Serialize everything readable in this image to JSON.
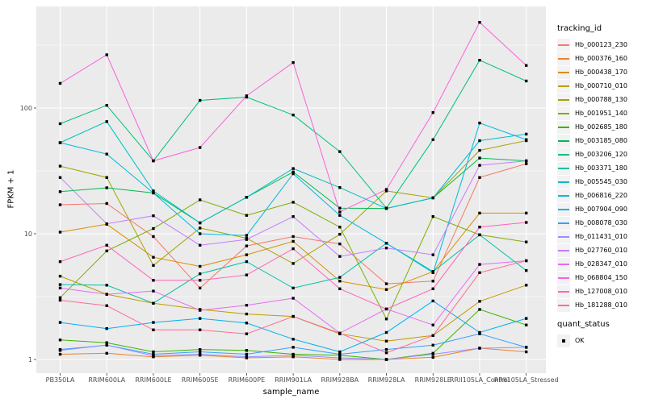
{
  "figure": {
    "legend": {
      "tracking_title": "tracking_id",
      "quant_title": "quant_status",
      "quant_items": [
        {
          "label": "OK"
        }
      ]
    },
    "colors": {
      "panel": "#EBEBEB",
      "grid_major": "#FFFFFF",
      "grid_minor": "#FFFFFF",
      "axis_text": "#4D4D4D",
      "tick_mark": "#333333",
      "key_bg": "#F2F2F2",
      "point": "#000000"
    }
  },
  "chart_data": {
    "type": "line",
    "title": "",
    "xlabel": "sample_name",
    "ylabel": "FPKM + 1",
    "y_scale": "log10",
    "ylim": [
      0.85,
      640
    ],
    "y_ticks": [
      1,
      10,
      100
    ],
    "y_tick_labels": [
      "1",
      "10",
      "100"
    ],
    "grid": true,
    "legend_position": "right",
    "point_marker": "black-square",
    "categories": [
      "PB350LA",
      "RRIM600LA",
      "RRIM600LE",
      "RRIM600SE",
      "RRIM600PE",
      "RRIM901LA",
      "RRIM928BA",
      "RRIM928LA",
      "RRIM928LE",
      "RRII105LA_Control",
      "RRII105LA_Stressed"
    ],
    "series": [
      {
        "name": "Hb_000123_230",
        "color": "#F8766D",
        "values": [
          17,
          17.4,
          9.5,
          3.7,
          8.0,
          9.5,
          8.3,
          4.0,
          4.2,
          28,
          36
        ]
      },
      {
        "name": "Hb_000376_160",
        "color": "#EA8331",
        "values": [
          1.1,
          1.12,
          1.05,
          1.08,
          1.03,
          1.05,
          1.0,
          1.0,
          1.04,
          1.23,
          1.15
        ]
      },
      {
        "name": "Hb_000438_170",
        "color": "#D89000",
        "values": [
          10.3,
          11.9,
          6.5,
          5.5,
          6.8,
          8.7,
          4.2,
          3.6,
          5.0,
          14.6,
          14.6
        ]
      },
      {
        "name": "Hb_000710_010",
        "color": "#C09B00",
        "values": [
          4.6,
          3.3,
          2.8,
          2.5,
          2.3,
          2.2,
          1.6,
          1.4,
          1.55,
          2.9,
          3.9
        ]
      },
      {
        "name": "Hb_000788_130",
        "color": "#A3A500",
        "values": [
          34.5,
          28,
          5.6,
          11.1,
          9.2,
          5.8,
          9.9,
          21.9,
          19.3,
          46,
          55
        ]
      },
      {
        "name": "Hb_001951_140",
        "color": "#7CAE00",
        "values": [
          3.1,
          7.3,
          11.0,
          18.6,
          14.0,
          17.8,
          11.3,
          2.1,
          13.7,
          9.8,
          8.6
        ]
      },
      {
        "name": "Hb_002685_180",
        "color": "#39B600",
        "values": [
          1.43,
          1.36,
          1.15,
          1.2,
          1.18,
          1.1,
          1.08,
          1.0,
          1.12,
          2.5,
          1.88
        ]
      },
      {
        "name": "Hb_003185_080",
        "color": "#00BB4E",
        "values": [
          21.6,
          23.2,
          21.1,
          12.2,
          19.5,
          31,
          16,
          15.9,
          19.3,
          40,
          38
        ]
      },
      {
        "name": "Hb_003206_120",
        "color": "#00BF7D",
        "values": [
          75,
          105,
          38,
          115,
          122,
          88,
          45,
          16,
          56,
          240,
          164
        ]
      },
      {
        "name": "Hb_003371_180",
        "color": "#00C1A3",
        "values": [
          3.94,
          3.9,
          2.8,
          4.8,
          6.0,
          3.7,
          4.5,
          8.4,
          5.0,
          9.8,
          5.1
        ]
      },
      {
        "name": "Hb_005545_030",
        "color": "#00BFC4",
        "values": [
          53,
          78,
          21.9,
          12.2,
          19.5,
          33,
          23.3,
          15.9,
          19.3,
          55,
          62
        ]
      },
      {
        "name": "Hb_006816_220",
        "color": "#00BAE0",
        "values": [
          53,
          43,
          21.1,
          10.0,
          9.7,
          30,
          14,
          8.4,
          4.9,
          76,
          56
        ]
      },
      {
        "name": "Hb_007904_090",
        "color": "#00B0F6",
        "values": [
          1.97,
          1.76,
          1.97,
          2.12,
          1.95,
          1.45,
          1.15,
          1.64,
          2.92,
          1.64,
          2.12
        ]
      },
      {
        "name": "Hb_008078_030",
        "color": "#35A2FF",
        "values": [
          1.2,
          1.3,
          1.1,
          1.15,
          1.1,
          1.25,
          1.1,
          1.2,
          1.3,
          1.6,
          1.25
        ]
      },
      {
        "name": "Hb_011431_010",
        "color": "#9590FF",
        "values": [
          1.18,
          1.3,
          1.07,
          1.1,
          1.05,
          1.08,
          1.03,
          1.0,
          1.1,
          1.23,
          1.25
        ]
      },
      {
        "name": "Hb_027760_010",
        "color": "#C77CFF",
        "values": [
          28,
          12.0,
          13.9,
          8.1,
          9.0,
          13.7,
          6.6,
          7.7,
          6.8,
          35,
          38
        ]
      },
      {
        "name": "Hb_028347_010",
        "color": "#E76BF3",
        "values": [
          3.7,
          3.3,
          3.5,
          2.46,
          2.7,
          3.07,
          1.62,
          2.52,
          1.88,
          5.7,
          6.1
        ]
      },
      {
        "name": "Hb_068804_150",
        "color": "#FA62DB",
        "values": [
          157,
          265,
          38,
          48.5,
          125,
          230,
          14.9,
          22.5,
          92,
          480,
          218
        ]
      },
      {
        "name": "Hb_127008_010",
        "color": "#FF62BC",
        "values": [
          6.0,
          8.1,
          4.26,
          4.26,
          4.7,
          7.6,
          3.65,
          2.52,
          3.65,
          11.3,
          12.3
        ]
      },
      {
        "name": "Hb_181288_010",
        "color": "#FF6A98",
        "values": [
          2.96,
          2.68,
          1.72,
          1.72,
          1.6,
          2.2,
          1.62,
          1.13,
          1.55,
          4.9,
          6.1
        ]
      }
    ]
  }
}
